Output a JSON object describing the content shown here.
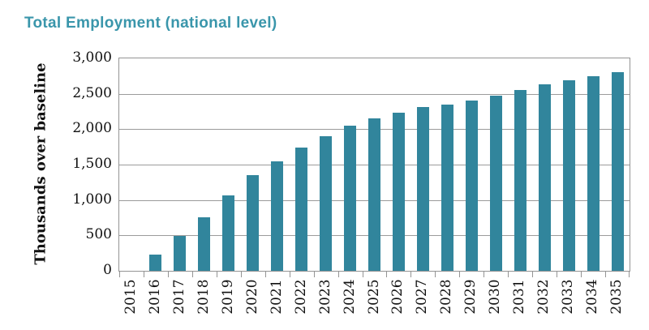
{
  "chart_data": {
    "type": "bar",
    "title": "Total Employment (national level)",
    "ylabel": "Thousands over baseline",
    "xlabel": "",
    "categories": [
      "2015",
      "2016",
      "2017",
      "2018",
      "2019",
      "2020",
      "2021",
      "2022",
      "2023",
      "2024",
      "2025",
      "2026",
      "2027",
      "2028",
      "2029",
      "2030",
      "2031",
      "2032",
      "2033",
      "2034",
      "2035"
    ],
    "values": [
      0,
      230,
      490,
      760,
      1070,
      1350,
      1550,
      1740,
      1900,
      2050,
      2150,
      2230,
      2310,
      2350,
      2410,
      2470,
      2550,
      2630,
      2690,
      2750,
      2800
    ],
    "ylim": [
      0,
      3000
    ],
    "ytick_interval": 500,
    "ytick_labels": [
      "0",
      "500",
      "1,000",
      "1,500",
      "2,000",
      "2,500",
      "3,000"
    ],
    "grid": "horizontal",
    "legend": "none",
    "colors": {
      "bar": "#31859C",
      "title": "#3A96AB",
      "gridline": "#9B9B9B",
      "plot_border": "#949494",
      "tick": "#949494",
      "axis_text": "#111111"
    }
  }
}
